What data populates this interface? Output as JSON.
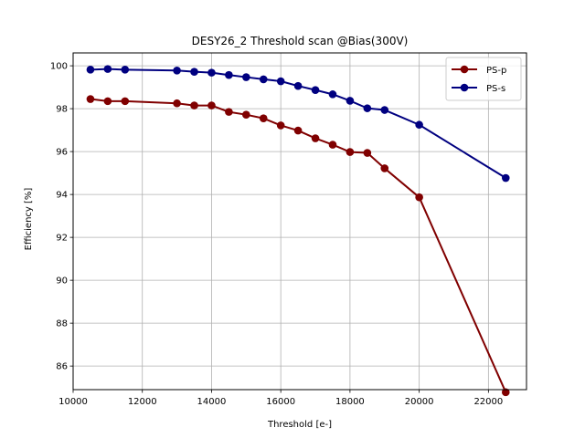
{
  "chart_data": {
    "type": "line",
    "title": "DESY26_2 Threshold scan @Bias(300V)",
    "xlabel": "Threshold [e-]",
    "ylabel": "Efficiency [%]",
    "xlim": [
      10000,
      23100
    ],
    "ylim": [
      84.9,
      100.6
    ],
    "xticks": [
      10000,
      12000,
      14000,
      16000,
      18000,
      20000,
      22000
    ],
    "yticks": [
      86,
      88,
      90,
      92,
      94,
      96,
      98,
      100
    ],
    "grid": true,
    "legend_position": "top-right",
    "series": [
      {
        "name": "PS-p",
        "color": "#800000",
        "x": [
          10500,
          11000,
          11500,
          13000,
          13500,
          14000,
          14500,
          15000,
          15500,
          16000,
          16500,
          17000,
          17500,
          18000,
          18500,
          19000,
          20000,
          22500
        ],
        "y": [
          98.45,
          98.35,
          98.35,
          98.25,
          98.15,
          98.15,
          97.85,
          97.72,
          97.55,
          97.22,
          96.98,
          96.62,
          96.32,
          95.98,
          95.94,
          95.22,
          93.87,
          84.78
        ]
      },
      {
        "name": "PS-s",
        "color": "#000080",
        "x": [
          10500,
          11000,
          11500,
          13000,
          13500,
          14000,
          14500,
          15000,
          15500,
          16000,
          16500,
          17000,
          17500,
          18000,
          18500,
          19000,
          20000,
          22500
        ],
        "y": [
          99.82,
          99.85,
          99.82,
          99.78,
          99.72,
          99.68,
          99.57,
          99.47,
          99.37,
          99.28,
          99.06,
          98.87,
          98.67,
          98.37,
          98.02,
          97.94,
          97.25,
          94.77
        ]
      }
    ]
  }
}
